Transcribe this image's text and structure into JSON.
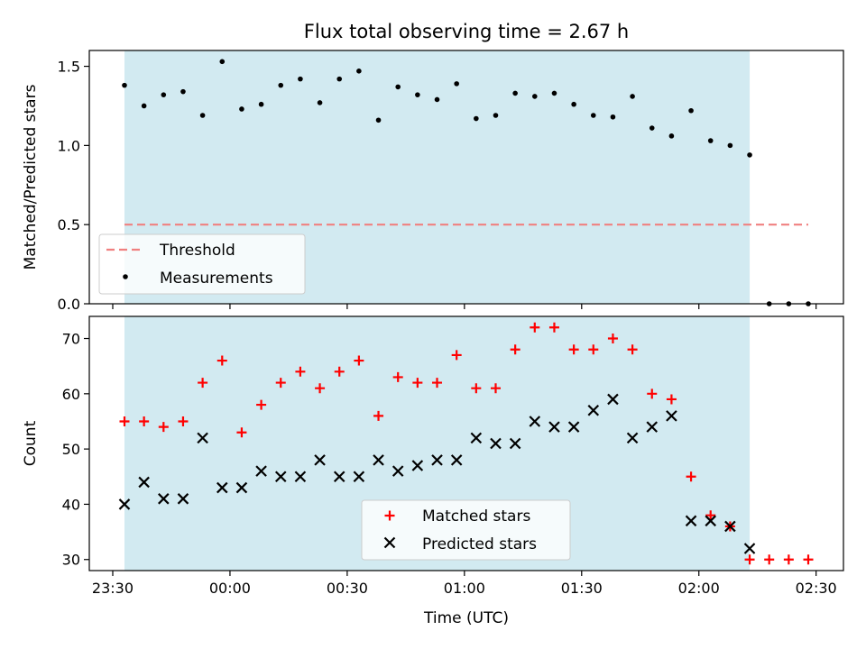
{
  "chart_data": {
    "title": "Flux total observing time = 2.67 h",
    "xlabel": "Time (UTC)",
    "x_tick_labels": [
      "23:30",
      "00:00",
      "00:30",
      "01:00",
      "01:30",
      "02:00",
      "02:30"
    ],
    "x_tick_minutes": [
      -30,
      0,
      30,
      60,
      90,
      120,
      150
    ],
    "xlim_minutes": [
      -36,
      157
    ],
    "highlight_span_minutes": [
      -27,
      133
    ],
    "highlight_color": "#add8e6",
    "panels": [
      {
        "type": "scatter",
        "ylabel": "Matched/Predicted stars",
        "ylim": [
          0,
          1.6
        ],
        "y_ticks": [
          0.0,
          0.5,
          1.0,
          1.5
        ],
        "y_tick_labels": [
          "0.0",
          "0.5",
          "1.0",
          "1.5"
        ],
        "threshold": {
          "name": "Threshold",
          "value": 0.5,
          "x_range": [
            -27,
            148
          ],
          "color": "#f08080"
        },
        "legend": {
          "position": "lower-left",
          "entries": [
            "Threshold",
            "Measurements"
          ]
        },
        "series": [
          {
            "name": "Measurements",
            "marker": "dot",
            "color": "#000000",
            "x": [
              -27,
              -22,
              -17,
              -12,
              -7,
              -2,
              3,
              8,
              13,
              18,
              23,
              28,
              33,
              38,
              43,
              48,
              53,
              58,
              63,
              68,
              73,
              78,
              83,
              88,
              93,
              98,
              103,
              108,
              113,
              118,
              123,
              128,
              133,
              138,
              143,
              148
            ],
            "y": [
              1.38,
              1.25,
              1.32,
              1.34,
              1.19,
              1.53,
              1.23,
              1.26,
              1.38,
              1.42,
              1.27,
              1.42,
              1.47,
              1.16,
              1.37,
              1.32,
              1.29,
              1.39,
              1.17,
              1.19,
              1.33,
              1.31,
              1.33,
              1.26,
              1.19,
              1.18,
              1.31,
              1.11,
              1.06,
              1.22,
              1.03,
              1.0,
              0.94,
              0.0,
              0.0,
              0.0
            ]
          }
        ]
      },
      {
        "type": "scatter",
        "ylabel": "Count",
        "ylim": [
          28,
          74
        ],
        "y_ticks": [
          30,
          40,
          50,
          60,
          70
        ],
        "y_tick_labels": [
          "30",
          "40",
          "50",
          "60",
          "70"
        ],
        "legend": {
          "position": "lower-center",
          "entries": [
            "Matched stars",
            "Predicted stars"
          ]
        },
        "series": [
          {
            "name": "Matched stars",
            "marker": "plus",
            "color": "#ff0000",
            "x": [
              -27,
              -22,
              -17,
              -12,
              -7,
              -2,
              3,
              8,
              13,
              18,
              23,
              28,
              33,
              38,
              43,
              48,
              53,
              58,
              63,
              68,
              73,
              78,
              83,
              88,
              93,
              98,
              103,
              108,
              113,
              118,
              123,
              128,
              133,
              138,
              143,
              148
            ],
            "y": [
              55,
              55,
              54,
              55,
              62,
              66,
              53,
              58,
              62,
              64,
              61,
              64,
              66,
              56,
              63,
              62,
              62,
              67,
              61,
              61,
              68,
              72,
              72,
              68,
              68,
              70,
              68,
              60,
              59,
              45,
              38,
              36,
              30,
              30,
              30,
              30
            ]
          },
          {
            "name": "Predicted stars",
            "marker": "x",
            "color": "#000000",
            "x": [
              -27,
              -22,
              -17,
              -12,
              -7,
              -2,
              3,
              8,
              13,
              18,
              23,
              28,
              33,
              38,
              43,
              48,
              53,
              58,
              63,
              68,
              73,
              78,
              83,
              88,
              93,
              98,
              103,
              108,
              113,
              118,
              123,
              128,
              133
            ],
            "y": [
              40,
              44,
              41,
              41,
              52,
              43,
              43,
              46,
              45,
              45,
              48,
              45,
              45,
              48,
              46,
              47,
              48,
              48,
              52,
              51,
              51,
              55,
              54,
              54,
              57,
              59,
              52,
              54,
              56,
              37,
              37,
              36,
              32
            ]
          }
        ]
      }
    ]
  }
}
